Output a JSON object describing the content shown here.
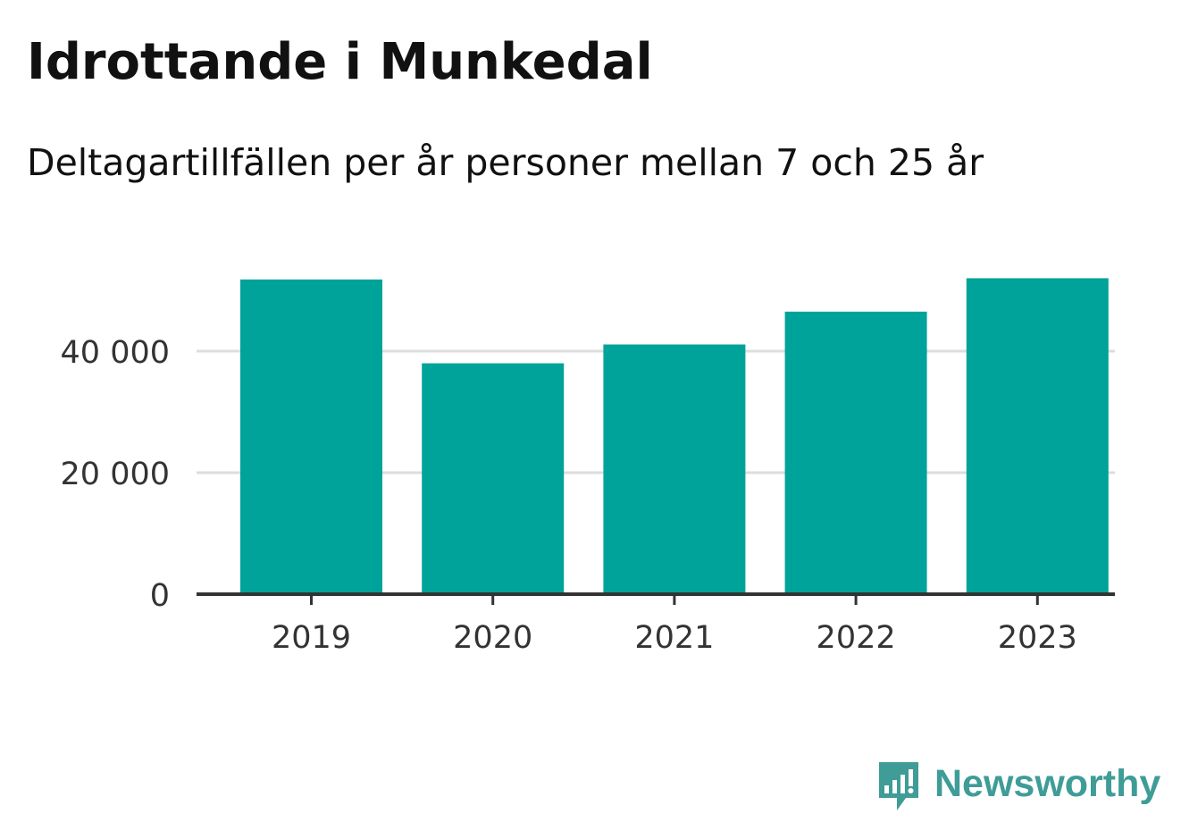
{
  "chart_data": {
    "type": "bar",
    "title": "Idrottande i Munkedal",
    "subtitle": "Deltagartillfällen per år personer mellan 7 och 25 år",
    "categories": [
      "2019",
      "2020",
      "2021",
      "2022",
      "2023"
    ],
    "values": [
      51800,
      38000,
      41100,
      46500,
      52000
    ],
    "ylim": [
      0,
      60000
    ],
    "yticks": [
      0,
      20000,
      40000
    ],
    "ytick_labels": [
      "0",
      "20 000",
      "40 000"
    ],
    "xlabel": "",
    "ylabel": "",
    "grid": true,
    "bar_color": "#00a39a",
    "grid_color": "#dddddd",
    "axis_color": "#333333"
  },
  "brand": {
    "name": "Newsworthy",
    "color": "#3f9c97",
    "icon": "newsworthy-logo-icon"
  }
}
